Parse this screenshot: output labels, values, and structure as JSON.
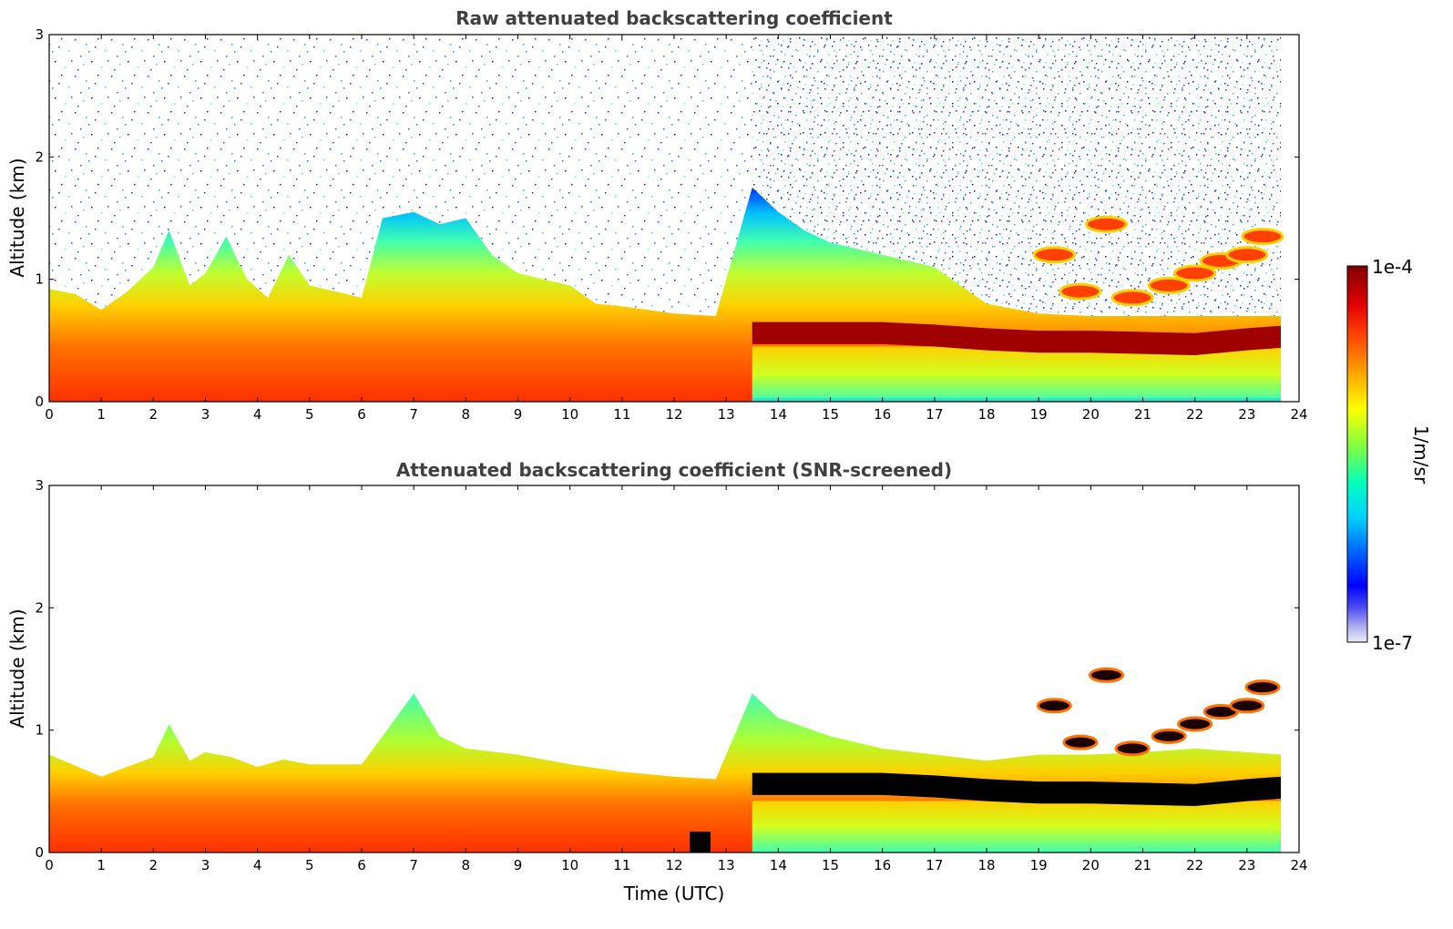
{
  "chart_data": [
    {
      "type": "heatmap",
      "title": "Raw attenuated backscattering coefficient",
      "xlabel": "",
      "ylabel": "Altitude (km)",
      "xlim": [
        0,
        24
      ],
      "ylim": [
        0,
        3
      ],
      "x_ticks": [
        0,
        1,
        2,
        3,
        4,
        5,
        6,
        7,
        8,
        9,
        10,
        11,
        12,
        13,
        14,
        15,
        16,
        17,
        18,
        19,
        20,
        21,
        22,
        23,
        24
      ],
      "y_ticks": [
        0,
        1,
        2,
        3
      ],
      "data_end_time": 23.65,
      "boundary_layer_top_km": [
        [
          0,
          0.92
        ],
        [
          0.5,
          0.88
        ],
        [
          1,
          0.75
        ],
        [
          1.5,
          0.9
        ],
        [
          2,
          1.1
        ],
        [
          2.3,
          1.4
        ],
        [
          2.7,
          0.95
        ],
        [
          3,
          1.05
        ],
        [
          3.4,
          1.35
        ],
        [
          3.8,
          1.0
        ],
        [
          4.2,
          0.85
        ],
        [
          4.6,
          1.2
        ],
        [
          5,
          0.95
        ],
        [
          5.5,
          0.9
        ],
        [
          6,
          0.85
        ],
        [
          6.4,
          1.5
        ],
        [
          7,
          1.55
        ],
        [
          7.5,
          1.45
        ],
        [
          8,
          1.5
        ],
        [
          8.5,
          1.2
        ],
        [
          9,
          1.05
        ],
        [
          10,
          0.95
        ],
        [
          10.5,
          0.8
        ],
        [
          11,
          0.78
        ],
        [
          12,
          0.72
        ],
        [
          12.8,
          0.7
        ],
        [
          13.5,
          1.75
        ],
        [
          14,
          1.55
        ],
        [
          14.5,
          1.4
        ],
        [
          15,
          1.3
        ],
        [
          16,
          1.2
        ],
        [
          17,
          1.1
        ],
        [
          18,
          0.8
        ],
        [
          19,
          0.72
        ],
        [
          20,
          0.7
        ],
        [
          21,
          0.7
        ],
        [
          22,
          0.7
        ],
        [
          23,
          0.7
        ],
        [
          23.65,
          0.7
        ]
      ],
      "elevated_layer_km": [
        [
          13.5,
          0.55
        ],
        [
          15,
          0.55
        ],
        [
          16,
          0.55
        ],
        [
          17,
          0.53
        ],
        [
          18,
          0.5
        ],
        [
          19,
          0.48
        ],
        [
          20,
          0.48
        ],
        [
          21,
          0.47
        ],
        [
          22,
          0.46
        ],
        [
          23,
          0.5
        ],
        [
          23.65,
          0.52
        ]
      ],
      "cloud_layer_km": [
        [
          19.3,
          1.2
        ],
        [
          19.8,
          0.9
        ],
        [
          20.3,
          1.45
        ],
        [
          20.8,
          0.85
        ],
        [
          21.5,
          0.95
        ],
        [
          22,
          1.05
        ],
        [
          22.5,
          1.15
        ],
        [
          23,
          1.2
        ],
        [
          23.3,
          1.35
        ]
      ]
    },
    {
      "type": "heatmap",
      "title": "Attenuated backscattering coefficient (SNR-screened)",
      "xlabel": "Time (UTC)",
      "ylabel": "Altitude (km)",
      "xlim": [
        0,
        24
      ],
      "ylim": [
        0,
        3
      ],
      "x_ticks": [
        0,
        1,
        2,
        3,
        4,
        5,
        6,
        7,
        8,
        9,
        10,
        11,
        12,
        13,
        14,
        15,
        16,
        17,
        18,
        19,
        20,
        21,
        22,
        23,
        24
      ],
      "y_ticks": [
        0,
        1,
        2,
        3
      ],
      "data_end_time": 23.65,
      "screened_top_km": [
        [
          0,
          0.8
        ],
        [
          1,
          0.62
        ],
        [
          1.5,
          0.7
        ],
        [
          2,
          0.78
        ],
        [
          2.3,
          1.05
        ],
        [
          2.7,
          0.75
        ],
        [
          3,
          0.82
        ],
        [
          3.5,
          0.78
        ],
        [
          4,
          0.7
        ],
        [
          4.5,
          0.76
        ],
        [
          5,
          0.72
        ],
        [
          6,
          0.72
        ],
        [
          6.4,
          0.95
        ],
        [
          7,
          1.3
        ],
        [
          7.5,
          0.95
        ],
        [
          8,
          0.85
        ],
        [
          9,
          0.8
        ],
        [
          10,
          0.72
        ],
        [
          11,
          0.66
        ],
        [
          12,
          0.62
        ],
        [
          12.8,
          0.6
        ],
        [
          13.5,
          1.3
        ],
        [
          14,
          1.1
        ],
        [
          15,
          0.95
        ],
        [
          16,
          0.85
        ],
        [
          17,
          0.8
        ],
        [
          18,
          0.75
        ],
        [
          19,
          0.8
        ],
        [
          20,
          0.8
        ],
        [
          21,
          0.82
        ],
        [
          22,
          0.85
        ],
        [
          23,
          0.82
        ],
        [
          23.65,
          0.8
        ]
      ]
    }
  ],
  "colorbar": {
    "label": "1/m/sr",
    "max_label": "1e-4",
    "min_label": "1e-7",
    "scale": "log",
    "range": [
      1e-07,
      0.0001
    ],
    "colormap": [
      "#e8e8f8",
      "#b0b0f0",
      "#6060f0",
      "#0000ff",
      "#0060ff",
      "#00c0ff",
      "#00ffd0",
      "#40ff80",
      "#b0ff30",
      "#ffff00",
      "#ffb000",
      "#ff6000",
      "#ff1000",
      "#c00000",
      "#800000"
    ]
  }
}
